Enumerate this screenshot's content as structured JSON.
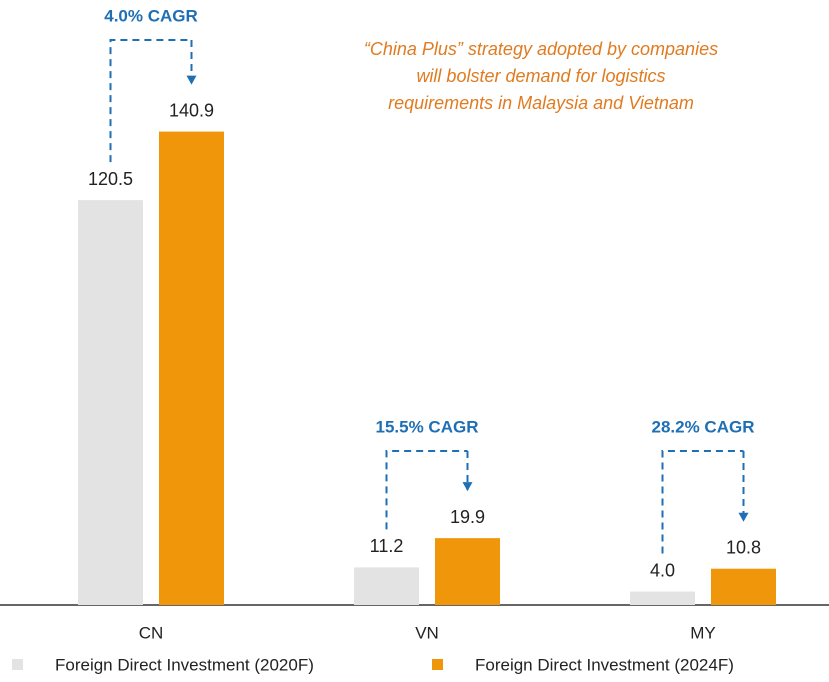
{
  "chart_data": {
    "type": "bar",
    "categories": [
      "CN",
      "VN",
      "MY"
    ],
    "series": [
      {
        "name": "Foreign Direct Investment (2020F)",
        "color": "#e3e3e3",
        "values": [
          120.5,
          11.2,
          4.0
        ],
        "value_labels": [
          "120.5",
          "11.2",
          "4.0"
        ]
      },
      {
        "name": "Foreign Direct Investment (2024F)",
        "color": "#f0960a",
        "values": [
          140.9,
          19.9,
          10.8
        ]
      }
    ],
    "cagr_labels": [
      "4.0% CAGR",
      "15.5% CAGR",
      "28.2% CAGR"
    ],
    "cagr_color": "#1f6fb5",
    "annotation": [
      "“China Plus” strategy adopted by companies",
      "will bolster demand for logistics",
      "requirements in Malaysia and Vietnam"
    ],
    "annotation_color": "#e07b20",
    "ylim": [
      0,
      150
    ]
  }
}
